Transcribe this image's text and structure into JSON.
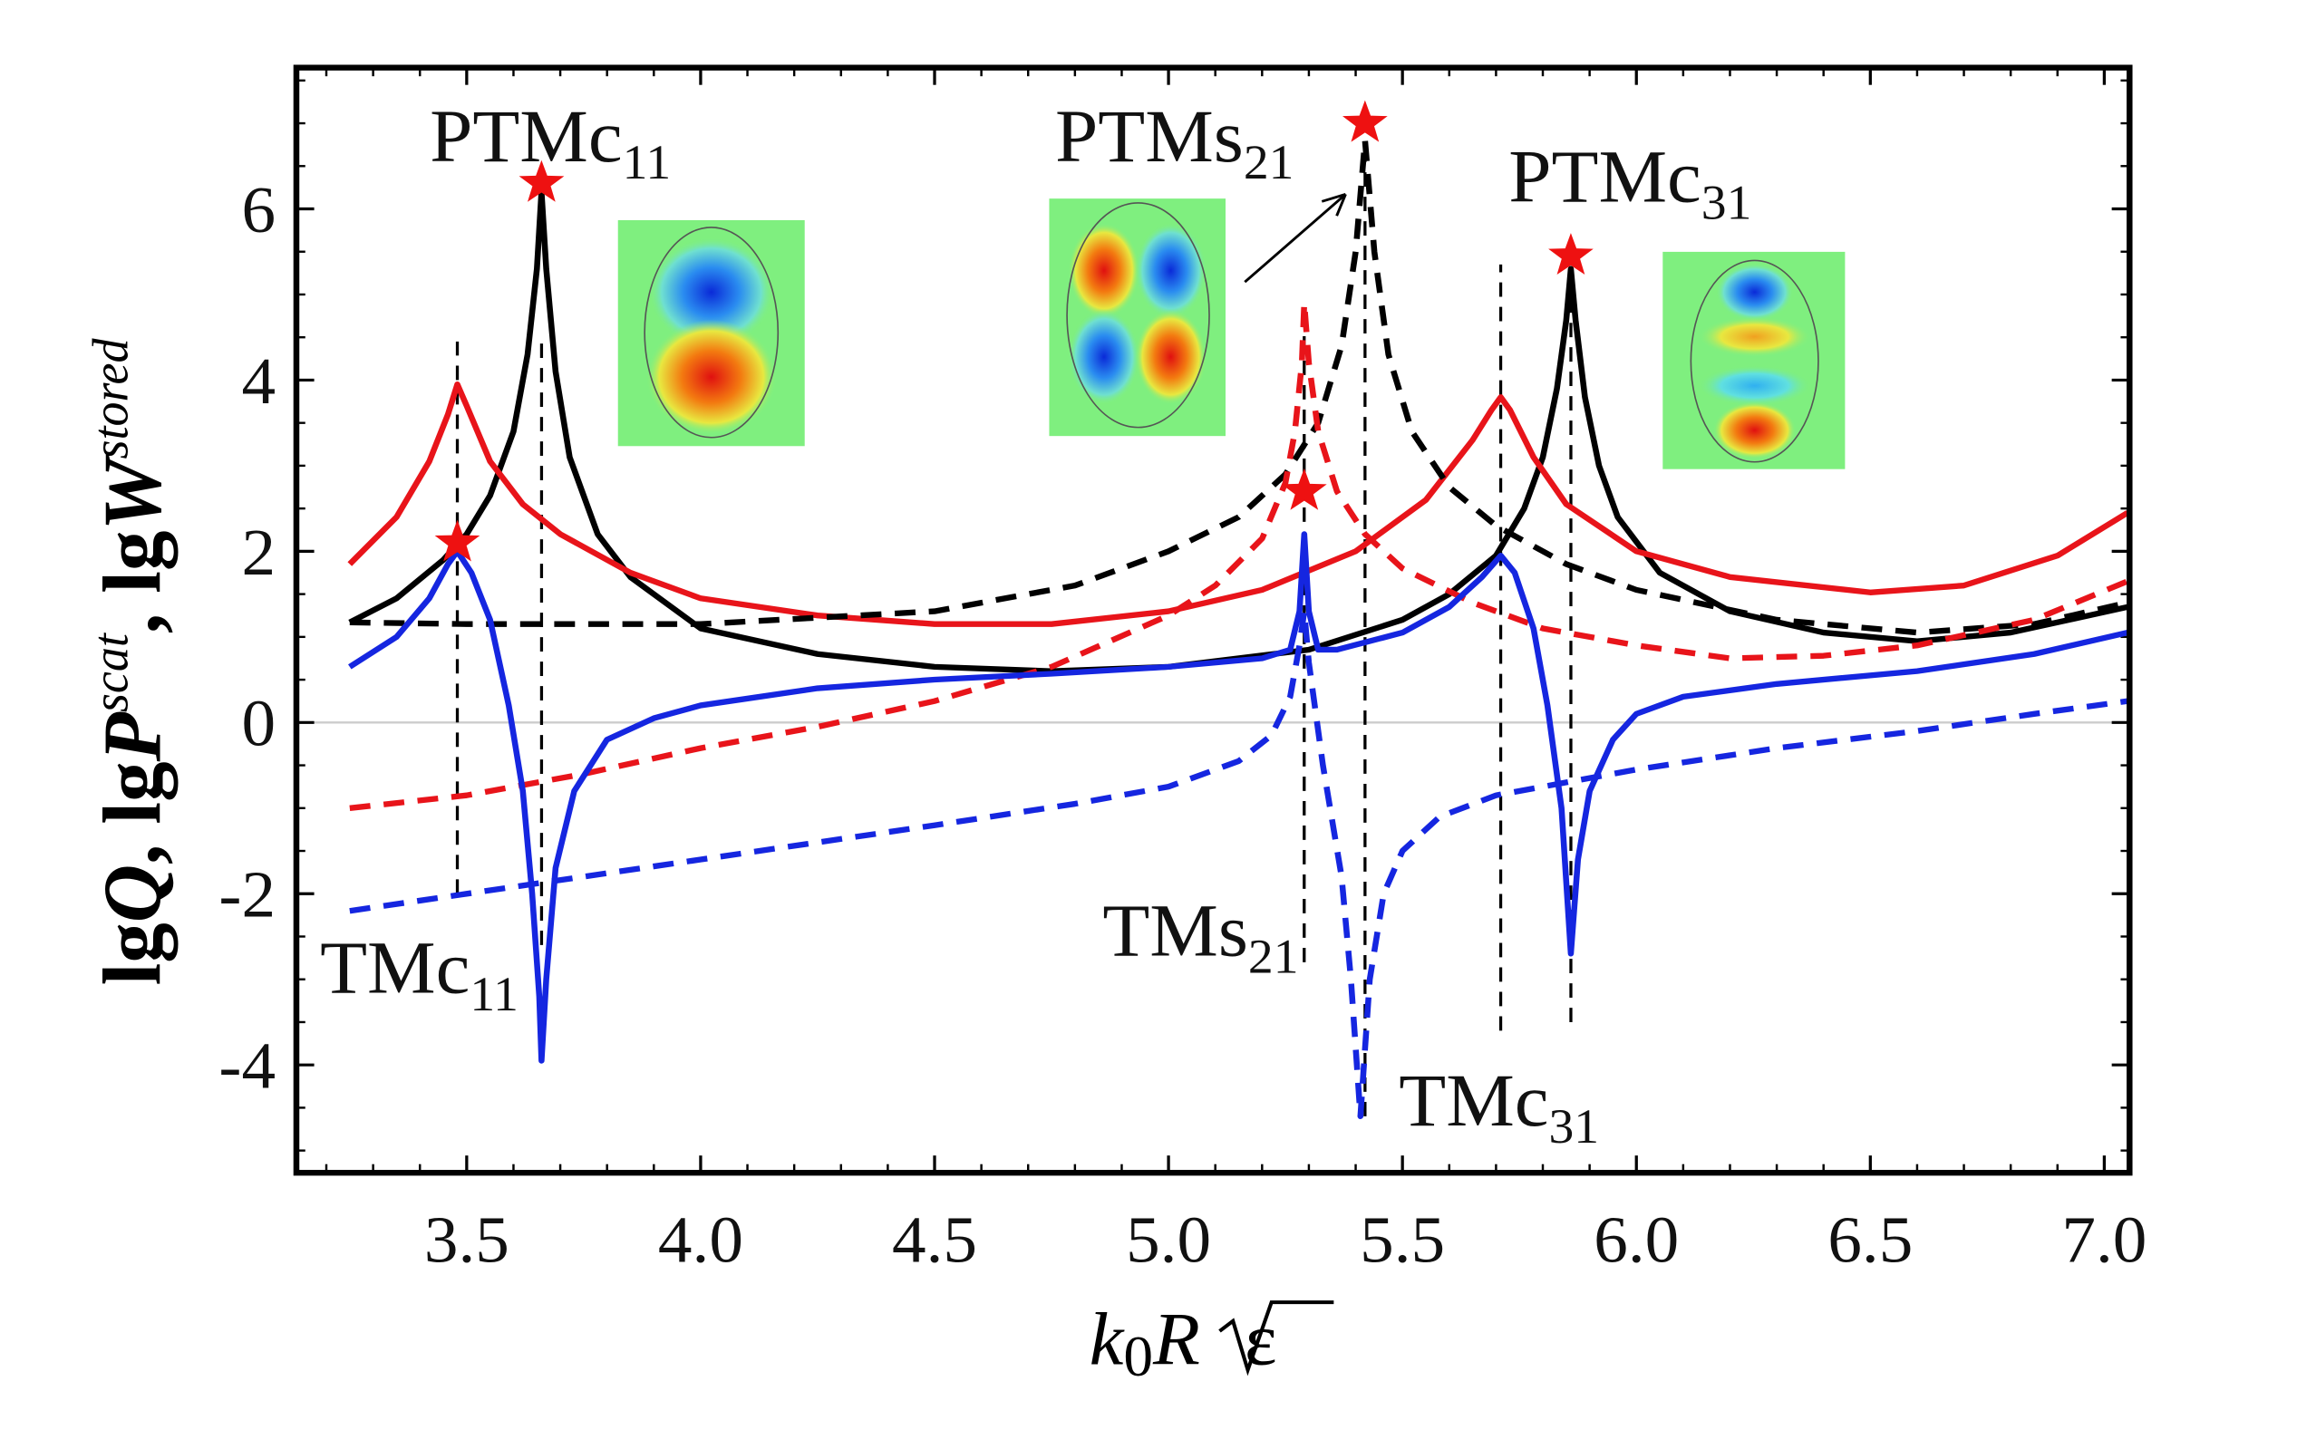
{
  "chart_data": {
    "type": "line",
    "title": "",
    "xlabel": "k0R√ε",
    "xlabel_parts": {
      "k": "k",
      "sub0": "0",
      "R": "R",
      "eps": "ε"
    },
    "ylabel": "lgQ, lgP^scat, lgW^stored",
    "ylabel_parts": {
      "a": "lg",
      "Q": "Q",
      "b": ", lg",
      "P": "P",
      "scat": "scat",
      "c": ", lg",
      "W": "W",
      "stored": "stored"
    },
    "xlim": [
      3.136,
      7.054
    ],
    "ylim": [
      -5.26,
      7.65
    ],
    "xticks": [
      "3.5",
      "4.0",
      "4.5",
      "5.0",
      "5.5",
      "6.0",
      "6.5",
      "7.0"
    ],
    "yticks": [
      "-4",
      "-2",
      "0",
      "2",
      "4",
      "6"
    ],
    "grid": false,
    "series": [
      {
        "name": "black solid",
        "color": "#000000",
        "dash": false,
        "x": [
          3.25,
          3.35,
          3.45,
          3.5,
          3.55,
          3.6,
          3.63,
          3.65,
          3.66,
          3.67,
          3.69,
          3.72,
          3.78,
          3.85,
          4.0,
          4.25,
          4.5,
          4.75,
          5.0,
          5.3,
          5.5,
          5.6,
          5.7,
          5.76,
          5.8,
          5.83,
          5.85,
          5.86,
          5.87,
          5.89,
          5.92,
          5.96,
          6.05,
          6.2,
          6.4,
          6.6,
          6.8,
          7.05
        ],
        "y": [
          1.17,
          1.45,
          1.9,
          2.2,
          2.65,
          3.4,
          4.3,
          5.3,
          6.2,
          5.3,
          4.1,
          3.1,
          2.2,
          1.7,
          1.1,
          0.8,
          0.65,
          0.6,
          0.65,
          0.85,
          1.2,
          1.5,
          1.95,
          2.5,
          3.1,
          3.9,
          4.7,
          5.3,
          4.7,
          3.8,
          3.0,
          2.4,
          1.75,
          1.3,
          1.05,
          0.95,
          1.05,
          1.35
        ]
      },
      {
        "name": "red solid",
        "color": "#e8141a",
        "dash": false,
        "x": [
          3.25,
          3.35,
          3.42,
          3.46,
          3.48,
          3.5,
          3.55,
          3.62,
          3.7,
          3.85,
          4.0,
          4.25,
          4.5,
          4.75,
          5.0,
          5.2,
          5.4,
          5.55,
          5.65,
          5.69,
          5.71,
          5.73,
          5.78,
          5.85,
          6.0,
          6.2,
          6.5,
          6.7,
          6.9,
          7.05
        ],
        "y": [
          1.85,
          2.4,
          3.05,
          3.6,
          3.95,
          3.7,
          3.05,
          2.55,
          2.2,
          1.75,
          1.45,
          1.25,
          1.15,
          1.15,
          1.3,
          1.55,
          2.0,
          2.6,
          3.3,
          3.65,
          3.8,
          3.65,
          3.1,
          2.55,
          2.0,
          1.7,
          1.52,
          1.6,
          1.95,
          2.45
        ]
      },
      {
        "name": "black dashed",
        "color": "#000000",
        "dash": true,
        "x": [
          3.25,
          3.5,
          4.0,
          4.5,
          4.8,
          5.0,
          5.15,
          5.25,
          5.32,
          5.37,
          5.4,
          5.42,
          5.44,
          5.47,
          5.52,
          5.6,
          5.7,
          5.85,
          6.0,
          6.3,
          6.6,
          6.85,
          7.05
        ],
        "y": [
          1.17,
          1.15,
          1.15,
          1.3,
          1.6,
          2.0,
          2.4,
          2.9,
          3.5,
          4.4,
          5.5,
          6.8,
          5.5,
          4.3,
          3.4,
          2.75,
          2.3,
          1.85,
          1.55,
          1.2,
          1.05,
          1.15,
          1.4
        ]
      },
      {
        "name": "red dashed",
        "color": "#e8141a",
        "dash": true,
        "x": [
          3.25,
          3.5,
          3.75,
          4.0,
          4.25,
          4.5,
          4.75,
          5.0,
          5.1,
          5.2,
          5.25,
          5.27,
          5.285,
          5.29,
          5.3,
          5.32,
          5.36,
          5.42,
          5.5,
          5.65,
          5.8,
          6.0,
          6.2,
          6.4,
          6.6,
          6.85,
          7.05
        ],
        "y": [
          -1.0,
          -0.85,
          -0.6,
          -0.3,
          -0.05,
          0.25,
          0.65,
          1.25,
          1.6,
          2.15,
          2.8,
          3.4,
          4.2,
          4.9,
          4.2,
          3.4,
          2.7,
          2.2,
          1.8,
          1.4,
          1.1,
          0.9,
          0.75,
          0.78,
          0.9,
          1.2,
          1.65
        ]
      },
      {
        "name": "blue solid",
        "color": "#1526e0",
        "dash": false,
        "x": [
          3.25,
          3.35,
          3.42,
          3.46,
          3.48,
          3.51,
          3.55,
          3.59,
          3.62,
          3.64,
          3.655,
          3.66,
          3.67,
          3.69,
          3.73,
          3.8,
          3.9,
          4.0,
          4.25,
          4.5,
          4.75,
          5.0,
          5.2,
          5.26,
          5.28,
          5.29,
          5.3,
          5.32,
          5.36,
          5.5,
          5.6,
          5.67,
          5.71,
          5.74,
          5.78,
          5.81,
          5.84,
          5.86,
          5.875,
          5.9,
          5.95,
          6.0,
          6.1,
          6.3,
          6.6,
          6.85,
          7.05
        ],
        "y": [
          0.65,
          1.0,
          1.45,
          1.85,
          2.0,
          1.75,
          1.2,
          0.2,
          -0.8,
          -2.0,
          -3.2,
          -3.95,
          -3.0,
          -1.7,
          -0.8,
          -0.2,
          0.05,
          0.2,
          0.4,
          0.5,
          0.57,
          0.65,
          0.75,
          0.85,
          1.3,
          2.2,
          1.3,
          0.85,
          0.85,
          1.05,
          1.35,
          1.7,
          1.95,
          1.75,
          1.1,
          0.2,
          -1.0,
          -2.7,
          -1.6,
          -0.8,
          -0.2,
          0.1,
          0.3,
          0.45,
          0.6,
          0.8,
          1.05
        ]
      },
      {
        "name": "blue dashed",
        "color": "#1526e0",
        "dash": true,
        "x": [
          3.25,
          3.5,
          4.0,
          4.5,
          4.8,
          5.0,
          5.15,
          5.22,
          5.26,
          5.28,
          5.29,
          5.3,
          5.33,
          5.37,
          5.39,
          5.41,
          5.43,
          5.46,
          5.5,
          5.58,
          5.7,
          5.85,
          6.0,
          6.3,
          6.6,
          6.85,
          7.05
        ],
        "y": [
          -2.2,
          -2.0,
          -1.6,
          -1.2,
          -0.95,
          -0.75,
          -0.45,
          -0.15,
          0.3,
          0.9,
          1.3,
          0.7,
          -0.5,
          -1.8,
          -3.0,
          -4.6,
          -3.0,
          -2.0,
          -1.5,
          -1.1,
          -0.85,
          -0.7,
          -0.55,
          -0.3,
          -0.1,
          0.1,
          0.25
        ]
      }
    ],
    "vlines": [
      {
        "x": 3.48,
        "y": [
          -2.0,
          4.45
        ]
      },
      {
        "x": 3.66,
        "y": [
          -2.6,
          4.5
        ]
      },
      {
        "x": 5.29,
        "y": [
          -2.8,
          4.9
        ]
      },
      {
        "x": 5.42,
        "y": [
          -4.6,
          6.6
        ]
      },
      {
        "x": 5.71,
        "y": [
          -3.6,
          5.35
        ]
      },
      {
        "x": 5.86,
        "y": [
          -3.5,
          5.2
        ]
      }
    ],
    "stars": [
      {
        "x": 3.66,
        "y": 6.3
      },
      {
        "x": 3.48,
        "y": 2.1
      },
      {
        "x": 5.29,
        "y": 2.7
      },
      {
        "x": 5.42,
        "y": 7.0
      },
      {
        "x": 5.86,
        "y": 5.45
      }
    ],
    "annotations": [
      {
        "main": "PTMc",
        "sub": "11"
      },
      {
        "main": "PTMs",
        "sub": "21"
      },
      {
        "main": "PTMc",
        "sub": "31"
      },
      {
        "main": "TMc",
        "sub": "11"
      },
      {
        "main": "TMs",
        "sub": "21"
      },
      {
        "main": "TMc",
        "sub": "31"
      }
    ],
    "colors": {
      "star": "#ee1111",
      "zero_line": "#cccccc",
      "inset_bg": "#7fef7f"
    }
  }
}
